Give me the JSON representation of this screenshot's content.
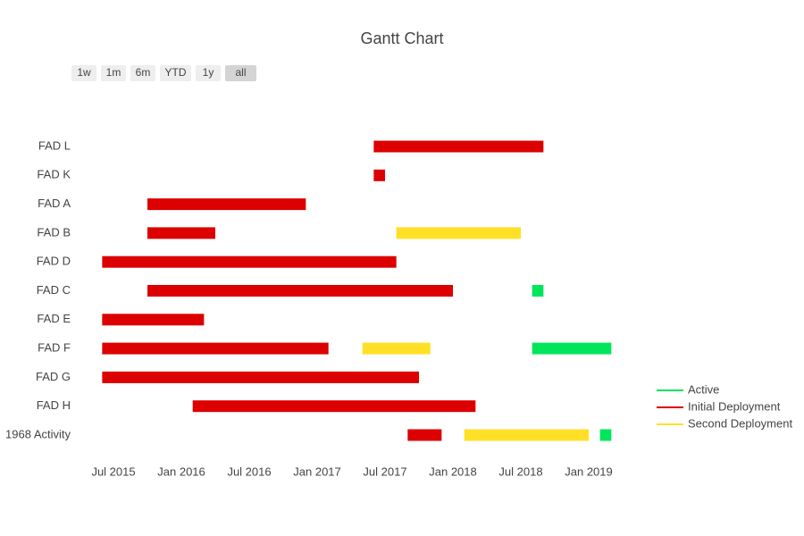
{
  "chart_data": {
    "type": "gantt",
    "title": "Gantt Chart",
    "buttons": [
      "1w",
      "1m",
      "6m",
      "YTD",
      "1y",
      "all"
    ],
    "active_button": "all",
    "categories": [
      "FAD L",
      "FAD K",
      "FAD A",
      "FAD B",
      "FAD D",
      "FAD C",
      "FAD E",
      "FAD F",
      "FAD G",
      "FAD H",
      "1968 Activity"
    ],
    "xlim": [
      "2015-05",
      "2019-04"
    ],
    "xticks": [
      {
        "value": "2015-07",
        "label": "Jul 2015"
      },
      {
        "value": "2016-01",
        "label": "Jan 2016"
      },
      {
        "value": "2016-07",
        "label": "Jul 2016"
      },
      {
        "value": "2017-01",
        "label": "Jan 2017"
      },
      {
        "value": "2017-07",
        "label": "Jul 2017"
      },
      {
        "value": "2018-01",
        "label": "Jan 2018"
      },
      {
        "value": "2018-07",
        "label": "Jul 2018"
      },
      {
        "value": "2019-01",
        "label": "Jan 2019"
      }
    ],
    "series": [
      {
        "name": "Active",
        "color": "#00e65c",
        "tasks": [
          "FAD C",
          "FAD F",
          "1968 Activity"
        ],
        "start": [
          "2018-08",
          "2018-08",
          "2019-02"
        ],
        "end": [
          "2018-09",
          "2019-03",
          "2019-03"
        ]
      },
      {
        "name": "Initial Deployment",
        "color": "#dc0000",
        "tasks": [
          "FAD L",
          "FAD K",
          "FAD A",
          "FAD B",
          "FAD D",
          "FAD C",
          "FAD E",
          "FAD F",
          "FAD G",
          "FAD H",
          "1968 Activity"
        ],
        "start": [
          "2017-06",
          "2017-06",
          "2015-10",
          "2015-10",
          "2015-06",
          "2015-10",
          "2015-06",
          "2015-06",
          "2015-06",
          "2016-02",
          "2017-09"
        ],
        "end": [
          "2018-09",
          "2017-07",
          "2016-12",
          "2016-04",
          "2017-08",
          "2018-01",
          "2016-03",
          "2017-02",
          "2017-10",
          "2018-03",
          "2017-12"
        ]
      },
      {
        "name": "Second Deployment",
        "color": "#ffe026",
        "tasks": [
          "FAD B",
          "FAD F",
          "1968 Activity"
        ],
        "start": [
          "2017-08",
          "2017-05",
          "2018-02"
        ],
        "end": [
          "2018-07",
          "2017-11",
          "2019-01"
        ]
      }
    ]
  }
}
